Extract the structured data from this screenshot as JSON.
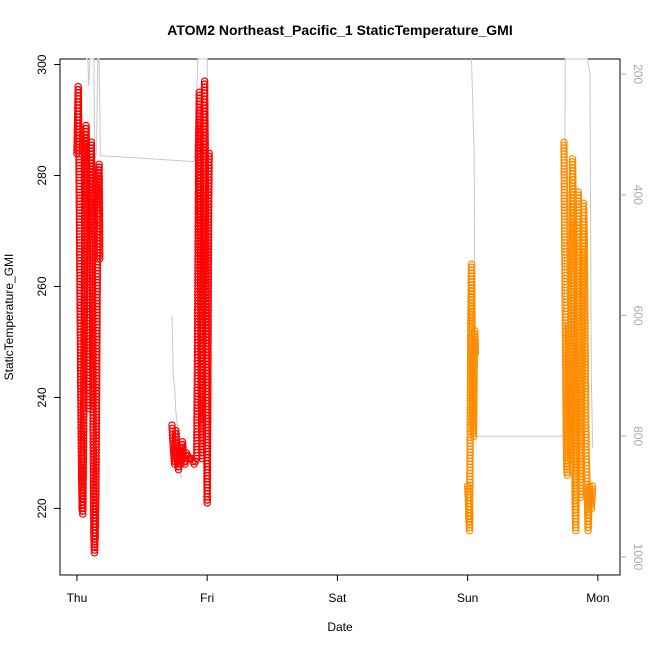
{
  "chart_data": {
    "type": "scatter",
    "title": "ATOM2 Northeast_Pacific_1 StaticTemperature_GMI",
    "xlabel": "Date",
    "ylabel": "StaticTemperature_GMI",
    "x_ticks": [
      "Thu",
      "Fri",
      "Sat",
      "Sun",
      "Mon"
    ],
    "x_tick_days": [
      0,
      1,
      2,
      3,
      4
    ],
    "xlim_days": [
      -0.13,
      4.17
    ],
    "ylim": [
      208,
      301
    ],
    "y_ticks": [
      220,
      240,
      260,
      280,
      300
    ],
    "y2_label": "",
    "y2_ticks": [
      200,
      400,
      600,
      800,
      1000
    ],
    "y2lim": [
      1030,
      175
    ],
    "y2_reversed": true,
    "grid": false,
    "legend": "none",
    "colors": {
      "red_series": "#ff0000",
      "orange_series": "#ff8c00",
      "secondary_line": "#c8c8c8",
      "axis": "#000000",
      "secondary_axis": "#aaaaaa"
    },
    "series": [
      {
        "color": "red",
        "marker": "open-circle",
        "points": [
          [
            0.0,
            284
          ],
          [
            0.005,
            290
          ],
          [
            0.01,
            296
          ],
          [
            0.015,
            285
          ],
          [
            0.02,
            270
          ],
          [
            0.025,
            255
          ],
          [
            0.03,
            240
          ],
          [
            0.035,
            228
          ],
          [
            0.04,
            220
          ],
          [
            0.045,
            219
          ],
          [
            0.05,
            230
          ],
          [
            0.055,
            250
          ],
          [
            0.06,
            270
          ],
          [
            0.065,
            285
          ],
          [
            0.07,
            289
          ],
          [
            0.075,
            281
          ],
          [
            0.08,
            262
          ],
          [
            0.085,
            244
          ],
          [
            0.09,
            238
          ],
          [
            0.095,
            250
          ],
          [
            0.1,
            268
          ],
          [
            0.105,
            280
          ],
          [
            0.11,
            286
          ],
          [
            0.115,
            278
          ],
          [
            0.12,
            255
          ],
          [
            0.125,
            232
          ],
          [
            0.13,
            215
          ],
          [
            0.135,
            212
          ],
          [
            0.14,
            215
          ],
          [
            0.145,
            222
          ],
          [
            0.15,
            238
          ],
          [
            0.155,
            258
          ],
          [
            0.16,
            272
          ],
          [
            0.165,
            280
          ],
          [
            0.17,
            282
          ],
          [
            0.175,
            265
          ]
        ]
      },
      {
        "color": "red",
        "marker": "open-circle",
        "points": [
          [
            0.73,
            235
          ],
          [
            0.74,
            231
          ],
          [
            0.75,
            228
          ],
          [
            0.76,
            234
          ],
          [
            0.77,
            229
          ],
          [
            0.78,
            227
          ],
          [
            0.79,
            231
          ],
          [
            0.8,
            228
          ],
          [
            0.81,
            232
          ],
          [
            0.82,
            229
          ],
          [
            0.83,
            228
          ],
          [
            0.84,
            230
          ],
          [
            0.86,
            229
          ],
          [
            0.88,
            229
          ],
          [
            0.9,
            228
          ],
          [
            0.92,
            229
          ],
          [
            0.925,
            245
          ],
          [
            0.93,
            265
          ],
          [
            0.935,
            285
          ],
          [
            0.94,
            295
          ],
          [
            0.945,
            280
          ],
          [
            0.95,
            260
          ],
          [
            0.955,
            240
          ],
          [
            0.96,
            229
          ],
          [
            0.965,
            245
          ],
          [
            0.97,
            270
          ],
          [
            0.975,
            290
          ],
          [
            0.98,
            297
          ],
          [
            0.985,
            285
          ],
          [
            0.99,
            260
          ],
          [
            0.995,
            240
          ],
          [
            1.0,
            221
          ],
          [
            1.005,
            240
          ],
          [
            1.01,
            270
          ],
          [
            1.015,
            284
          ]
        ]
      },
      {
        "color": "orange",
        "marker": "open-circle",
        "points": [
          [
            3.0,
            224
          ],
          [
            3.005,
            222
          ],
          [
            3.01,
            218
          ],
          [
            3.015,
            216
          ],
          [
            3.02,
            235
          ],
          [
            3.025,
            255
          ],
          [
            3.03,
            264
          ],
          [
            3.035,
            250
          ],
          [
            3.04,
            235
          ],
          [
            3.045,
            233
          ],
          [
            3.05,
            245
          ],
          [
            3.055,
            252
          ],
          [
            3.06,
            248
          ]
        ]
      },
      {
        "color": "orange",
        "marker": "open-circle",
        "points": [
          [
            3.74,
            286
          ],
          [
            3.745,
            270
          ],
          [
            3.75,
            255
          ],
          [
            3.755,
            240
          ],
          [
            3.76,
            228
          ],
          [
            3.765,
            226
          ],
          [
            3.77,
            240
          ],
          [
            3.775,
            253
          ],
          [
            3.78,
            245
          ],
          [
            3.785,
            233
          ],
          [
            3.79,
            229
          ],
          [
            3.795,
            245
          ],
          [
            3.8,
            265
          ],
          [
            3.805,
            283
          ],
          [
            3.81,
            276
          ],
          [
            3.815,
            260
          ],
          [
            3.82,
            240
          ],
          [
            3.825,
            222
          ],
          [
            3.83,
            216
          ],
          [
            3.835,
            230
          ],
          [
            3.84,
            250
          ],
          [
            3.845,
            270
          ],
          [
            3.85,
            277
          ],
          [
            3.855,
            265
          ],
          [
            3.86,
            245
          ],
          [
            3.865,
            230
          ],
          [
            3.87,
            222
          ],
          [
            3.875,
            235
          ],
          [
            3.88,
            250
          ],
          [
            3.885,
            265
          ],
          [
            3.89,
            275
          ],
          [
            3.895,
            270
          ],
          [
            3.9,
            255
          ],
          [
            3.905,
            240
          ],
          [
            3.91,
            230
          ],
          [
            3.915,
            226
          ],
          [
            3.92,
            222
          ],
          [
            3.925,
            216
          ],
          [
            3.93,
            220
          ],
          [
            3.935,
            224
          ],
          [
            3.94,
            222
          ],
          [
            3.95,
            220
          ],
          [
            3.96,
            224
          ]
        ]
      }
    ],
    "secondary_series": [
      {
        "color": "lightgray",
        "points": [
          [
            0.07,
            175
          ],
          [
            0.08,
            175
          ],
          [
            0.085,
            180
          ],
          [
            0.09,
            220
          ],
          [
            0.1,
            175
          ],
          [
            0.13,
            175
          ],
          [
            0.135,
            300
          ],
          [
            0.14,
            340
          ],
          [
            0.15,
            330
          ],
          [
            0.16,
            175
          ],
          [
            0.17,
            175
          ],
          [
            0.18,
            335
          ],
          [
            0.9,
            345
          ],
          [
            0.93,
            175
          ],
          [
            0.95,
            175
          ],
          [
            0.97,
            175
          ],
          [
            1.0,
            175
          ],
          [
            1.005,
            320
          ]
        ]
      },
      {
        "color": "lightgray",
        "points": [
          [
            0.73,
            600
          ],
          [
            0.74,
            700
          ],
          [
            0.75,
            720
          ],
          [
            0.76,
            760
          ],
          [
            0.78,
            800
          ],
          [
            0.8,
            870
          ]
        ]
      },
      {
        "color": "lightgray",
        "points": [
          [
            3.03,
            175
          ],
          [
            3.04,
            250
          ],
          [
            3.045,
            300
          ],
          [
            3.05,
            320
          ],
          [
            3.06,
            800
          ],
          [
            3.74,
            800
          ],
          [
            3.75,
            175
          ],
          [
            3.8,
            175
          ],
          [
            3.85,
            175
          ],
          [
            3.88,
            175
          ],
          [
            3.9,
            175
          ],
          [
            3.92,
            175
          ],
          [
            3.94,
            200
          ],
          [
            3.95,
            700
          ],
          [
            3.96,
            820
          ]
        ]
      }
    ]
  }
}
